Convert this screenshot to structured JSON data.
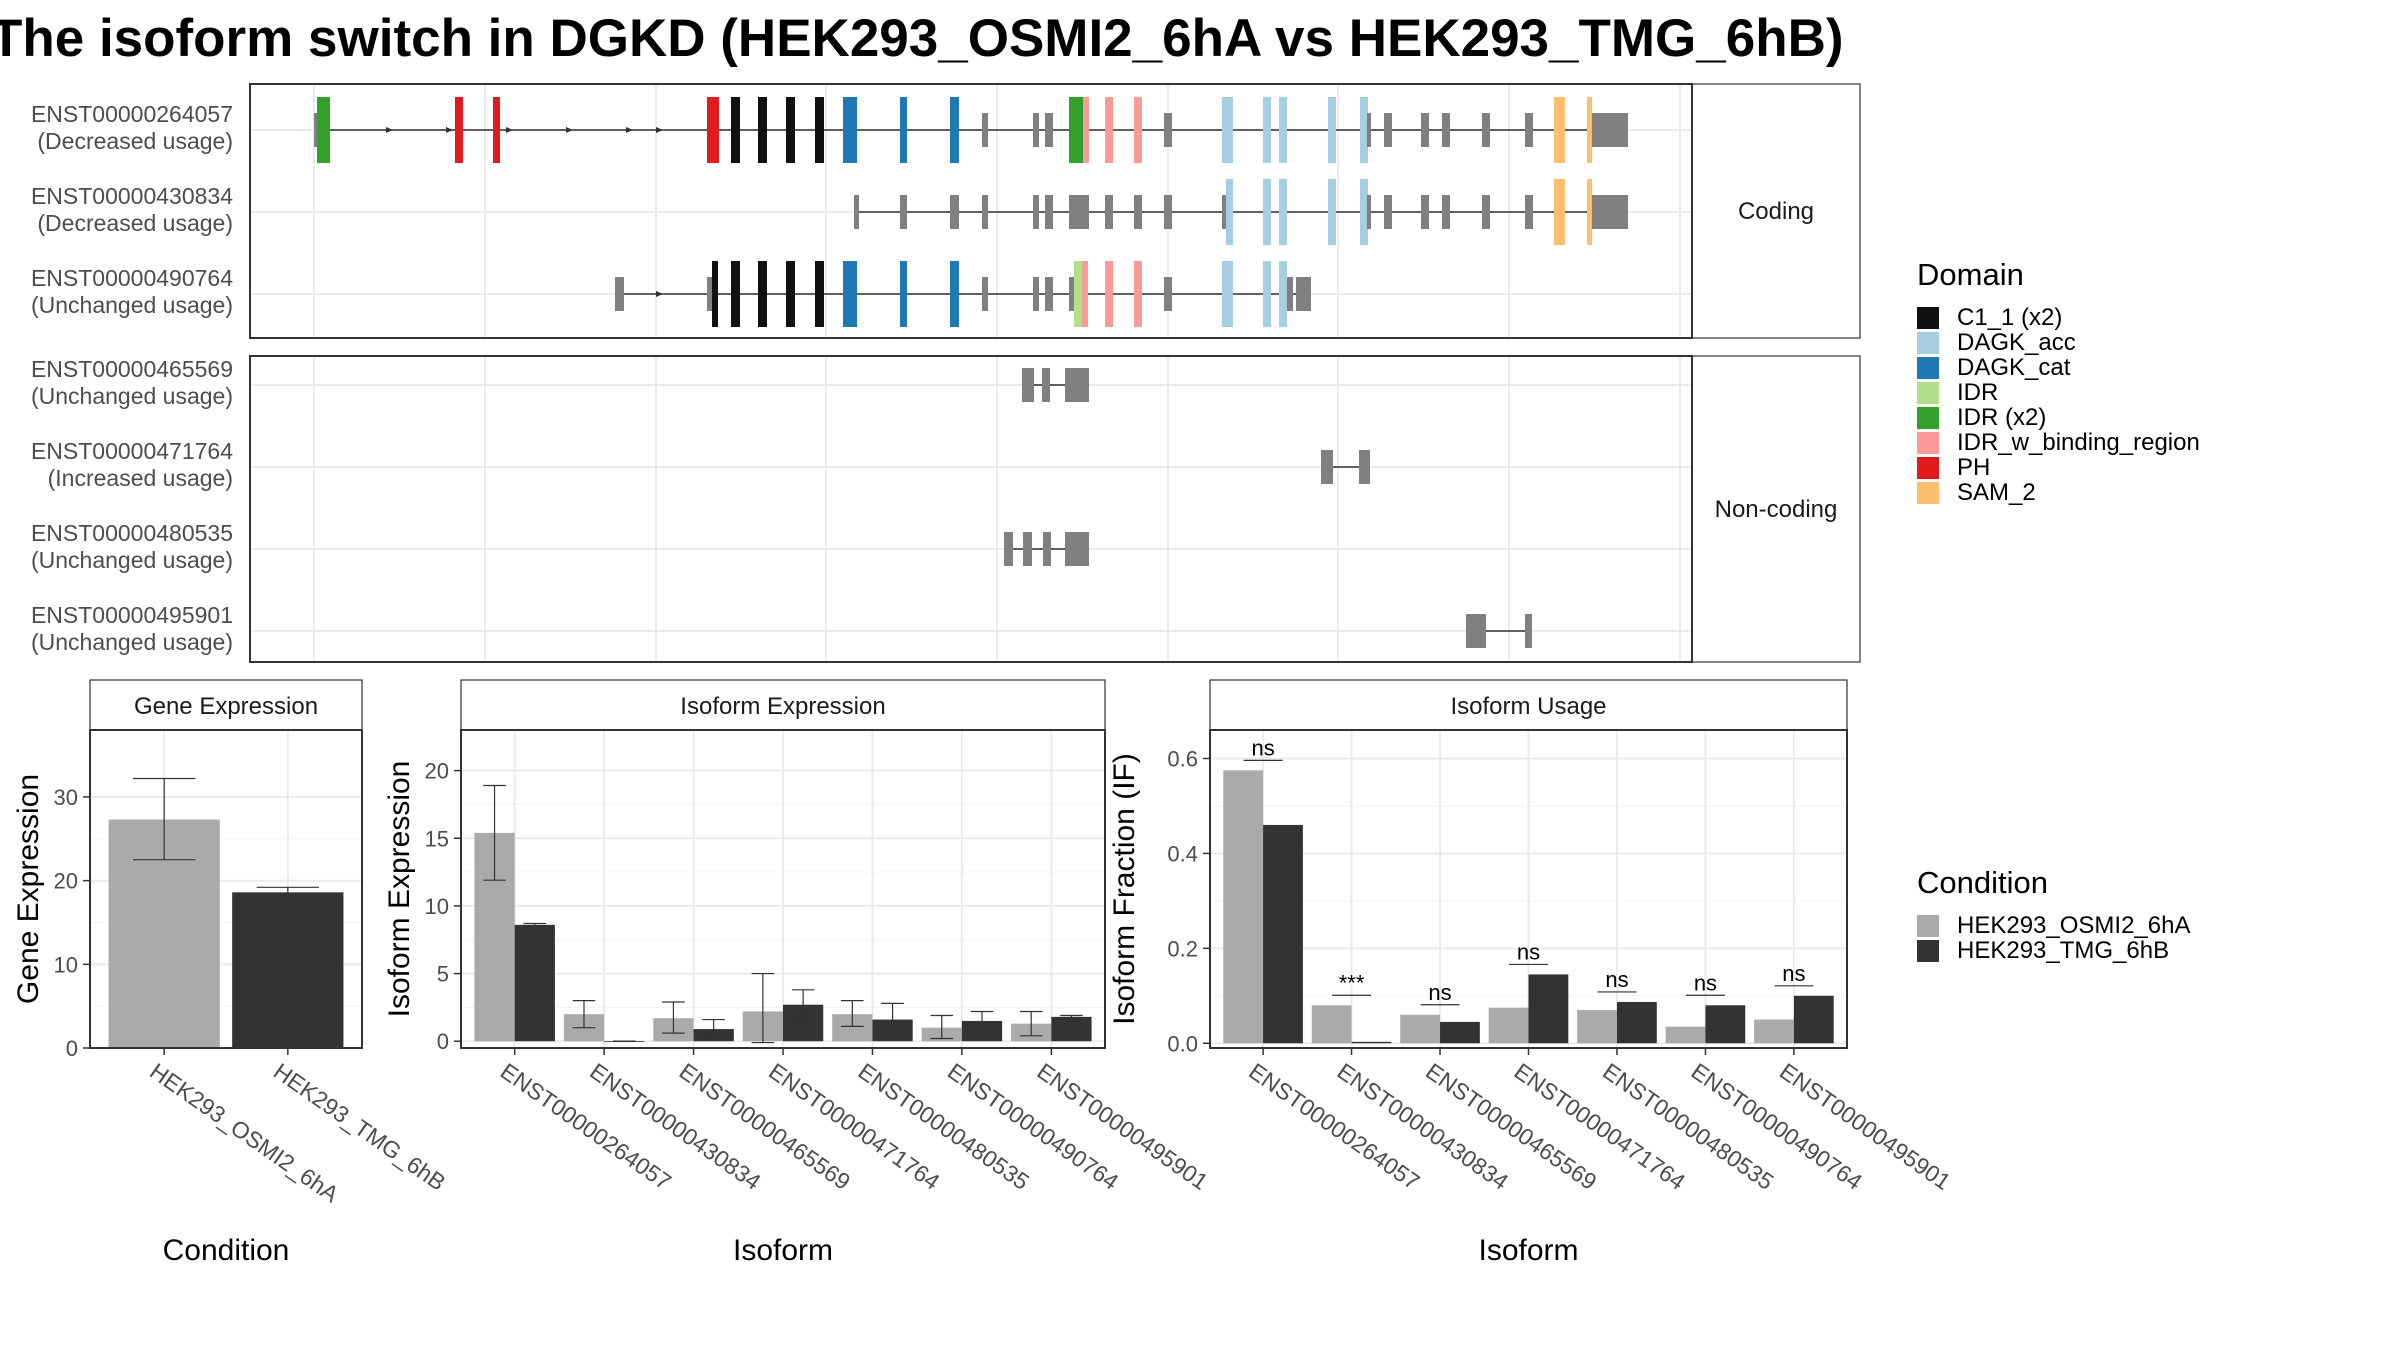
{
  "title": "The isoform switch in DGKD (HEK293_OSMI2_6hA vs HEK293_TMG_6hB)",
  "structure_panel": {
    "groups": [
      {
        "label": "Coding",
        "transcripts": [
          {
            "id": "ENST00000264057",
            "usage": "(Decreased usage)"
          },
          {
            "id": "ENST00000430834",
            "usage": "(Decreased usage)"
          },
          {
            "id": "ENST00000490764",
            "usage": "(Unchanged usage)"
          }
        ]
      },
      {
        "label": "Non-coding",
        "transcripts": [
          {
            "id": "ENST00000465569",
            "usage": "(Unchanged usage)"
          },
          {
            "id": "ENST00000471764",
            "usage": "(Increased usage)"
          },
          {
            "id": "ENST00000480535",
            "usage": "(Unchanged usage)"
          },
          {
            "id": "ENST00000495901",
            "usage": "(Unchanged usage)"
          }
        ]
      }
    ]
  },
  "legends": {
    "domain": {
      "title": "Domain",
      "items": [
        {
          "label": "C1_1 (x2)",
          "color": "#111111"
        },
        {
          "label": "DAGK_acc",
          "color": "#a6cee3"
        },
        {
          "label": "DAGK_cat",
          "color": "#1f78b4"
        },
        {
          "label": "IDR",
          "color": "#b2df8a"
        },
        {
          "label": "IDR (x2)",
          "color": "#33a02c"
        },
        {
          "label": "IDR_w_binding_region",
          "color": "#fb9a99"
        },
        {
          "label": "PH",
          "color": "#e31a1c"
        },
        {
          "label": "SAM_2",
          "color": "#fdbf6f"
        }
      ]
    },
    "condition": {
      "title": "Condition",
      "items": [
        {
          "label": "HEK293_OSMI2_6hA",
          "color": "#aaaaaa"
        },
        {
          "label": "HEK293_TMG_6hB",
          "color": "#333333"
        }
      ]
    }
  },
  "chart_data": [
    {
      "type": "bar",
      "title": "Gene Expression",
      "xlabel": "Condition",
      "ylabel": "Gene Expression",
      "ylim": [
        0,
        38
      ],
      "yticks": [
        0,
        10,
        20,
        30
      ],
      "grid": true,
      "categories": [
        "HEK293_OSMI2_6hA",
        "HEK293_TMG_6hB"
      ],
      "values": [
        27.3,
        18.6
      ],
      "errors": [
        [
          22.5,
          32.2
        ],
        [
          18.0,
          19.2
        ]
      ],
      "colors": [
        "#aaaaaa",
        "#333333"
      ]
    },
    {
      "type": "bar",
      "title": "Isoform Expression",
      "xlabel": "Isoform",
      "ylabel": "Isoform Expression",
      "ylim": [
        -0.5,
        23
      ],
      "yticks": [
        0,
        5,
        10,
        15,
        20
      ],
      "grid": true,
      "categories": [
        "ENST00000264057",
        "ENST00000430834",
        "ENST00000465569",
        "ENST00000471764",
        "ENST00000480535",
        "ENST00000490764",
        "ENST00000495901"
      ],
      "series": [
        {
          "name": "HEK293_OSMI2_6hA",
          "color": "#aaaaaa",
          "values": [
            15.4,
            2.0,
            1.7,
            2.2,
            2.0,
            1.0,
            1.3
          ],
          "errors": [
            [
              11.9,
              18.9
            ],
            [
              1.0,
              3.0
            ],
            [
              0.6,
              2.9
            ],
            [
              -0.1,
              5.0
            ],
            [
              1.1,
              3.0
            ],
            [
              0.2,
              1.9
            ],
            [
              0.4,
              2.2
            ]
          ]
        },
        {
          "name": "HEK293_TMG_6hB",
          "color": "#333333",
          "values": [
            8.6,
            0.0,
            0.9,
            2.7,
            1.6,
            1.5,
            1.8
          ],
          "errors": [
            [
              8.5,
              8.7
            ],
            [
              0.0,
              0.0
            ],
            [
              0.3,
              1.6
            ],
            [
              1.7,
              3.8
            ],
            [
              0.5,
              2.8
            ],
            [
              0.9,
              2.2
            ],
            [
              1.6,
              1.9
            ]
          ]
        }
      ]
    },
    {
      "type": "bar",
      "title": "Isoform Usage",
      "xlabel": "Isoform",
      "ylabel": "Isoform Fraction (IF)",
      "ylim": [
        -0.01,
        0.66
      ],
      "yticks": [
        0.0,
        0.2,
        0.4,
        0.6
      ],
      "ytick_labels": [
        "0.0",
        "0.2",
        "0.4",
        "0.6"
      ],
      "grid": true,
      "categories": [
        "ENST00000264057",
        "ENST00000430834",
        "ENST00000465569",
        "ENST00000471764",
        "ENST00000480535",
        "ENST00000490764",
        "ENST00000495901"
      ],
      "series": [
        {
          "name": "HEK293_OSMI2_6hA",
          "color": "#aaaaaa",
          "values": [
            0.575,
            0.08,
            0.06,
            0.075,
            0.07,
            0.035,
            0.05
          ]
        },
        {
          "name": "HEK293_TMG_6hB",
          "color": "#333333",
          "values": [
            0.46,
            0.003,
            0.045,
            0.145,
            0.087,
            0.08,
            0.1
          ]
        }
      ],
      "significance": [
        "ns",
        "***",
        "ns",
        "ns",
        "ns",
        "ns",
        "ns"
      ]
    }
  ]
}
